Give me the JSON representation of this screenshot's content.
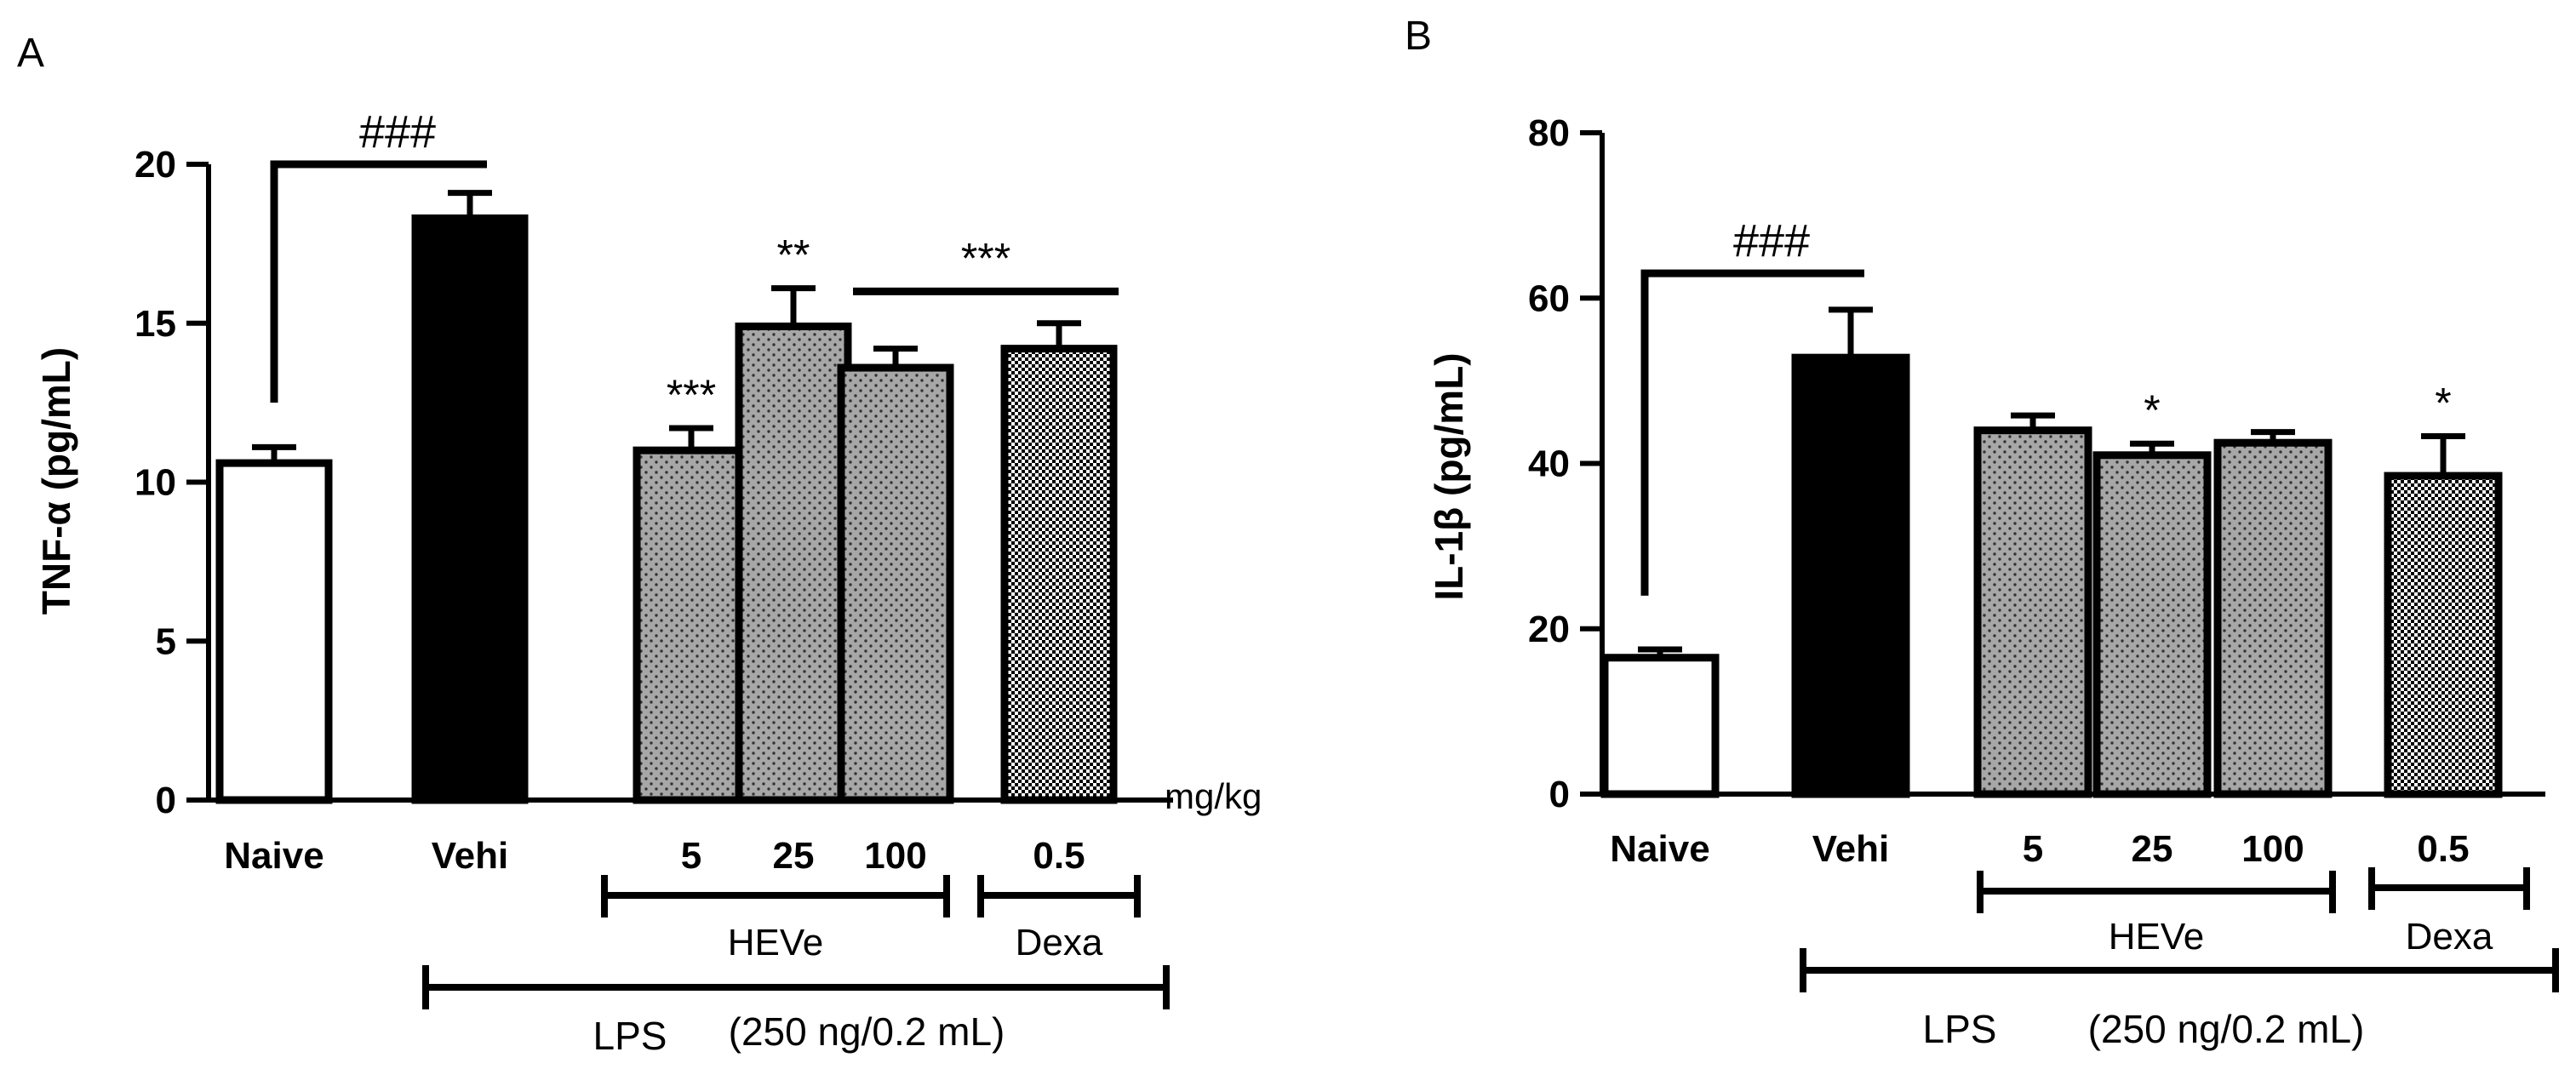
{
  "colors": {
    "ink": "#000000",
    "naive_fill": "#ffffff",
    "vehi_fill": "#000000",
    "heve_fill": "#a7a7a7",
    "dexa_fill": "#ffffff"
  },
  "chart_data": [
    {
      "type": "bar",
      "panel_label": "A",
      "ylabel": "TNF-α (pg/mL)",
      "ylim": [
        0,
        20
      ],
      "yticks": [
        0,
        5,
        10,
        15,
        20
      ],
      "ytick_labels": [
        "0",
        "5",
        "10",
        "15",
        "20"
      ],
      "categories": [
        "Naive",
        "Vehi",
        "5",
        "25",
        "100",
        "0.5"
      ],
      "values": [
        10.6,
        18.3,
        11.0,
        14.9,
        13.6,
        14.2
      ],
      "errors": [
        0.5,
        0.8,
        0.7,
        1.2,
        0.6,
        0.8
      ],
      "fills": [
        "naive",
        "vehi",
        "heve",
        "heve",
        "heve",
        "dexa"
      ],
      "bar_stars": [
        "",
        "",
        "***",
        "**",
        "",
        ""
      ],
      "comparison": {
        "label": "###",
        "from": 0,
        "to": 1,
        "left_y": 12.5,
        "top_y": 20
      },
      "bracket": {
        "label": "***",
        "from": 4,
        "to": 5,
        "y": 16.0
      },
      "unit_label": "mg/kg",
      "group_labels": {
        "heve": "HEVe",
        "dexa": "Dexa",
        "lps": "LPS",
        "lps_dose": "(250 ng/0.2 mL)"
      }
    },
    {
      "type": "bar",
      "panel_label": "B",
      "ylabel": "IL-1β (pg/mL)",
      "ylim": [
        0,
        80
      ],
      "yticks": [
        0,
        20,
        40,
        60,
        80
      ],
      "ytick_labels": [
        "0",
        "20",
        "40",
        "60",
        "80"
      ],
      "categories": [
        "Naive",
        "Vehi",
        "5",
        "25",
        "100",
        "0.5"
      ],
      "values": [
        16.5,
        52.8,
        44.0,
        41.0,
        42.5,
        38.5
      ],
      "errors": [
        1.0,
        5.8,
        1.8,
        1.4,
        1.3,
        4.8
      ],
      "fills": [
        "naive",
        "vehi",
        "heve",
        "heve",
        "heve",
        "dexa"
      ],
      "bar_stars": [
        "",
        "",
        "",
        "*",
        "",
        "*"
      ],
      "comparison": {
        "label": "###",
        "from": 0,
        "to": 1,
        "left_y": 24,
        "top_y": 63
      },
      "group_labels": {
        "heve": "HEVe",
        "dexa": "Dexa",
        "lps": "LPS",
        "lps_dose": "(250 ng/0.2 mL)"
      }
    }
  ]
}
